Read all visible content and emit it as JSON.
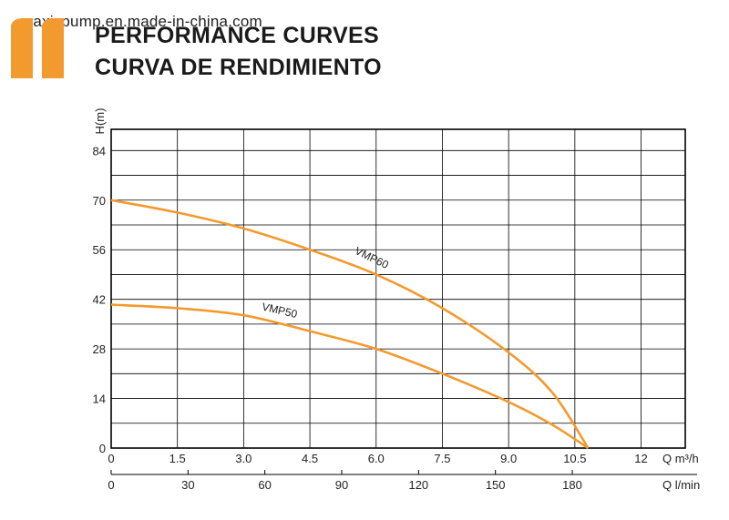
{
  "watermark": "maxispump.en.made-in-china.com",
  "title_line1": "PERFORMANCE CURVES",
  "title_line2": "CURVA DE RENDIMIENTO",
  "colors": {
    "curve": "#F39A2E",
    "grid": "#000000",
    "quote": "#F39A2E"
  },
  "chart_data": {
    "type": "line",
    "ylabel": "H(m)",
    "xlabel": "Q m³/h",
    "x2label": "Q l/min",
    "xlim": [
      0,
      13
    ],
    "ylim": [
      0,
      90
    ],
    "y_ticks": [
      0,
      14,
      28,
      42,
      56,
      70,
      84
    ],
    "x_ticks": [
      0,
      1.5,
      3.0,
      4.5,
      6.0,
      7.5,
      9.0,
      10.5,
      12
    ],
    "x_tick_labels": [
      "0",
      "1.5",
      "3.0",
      "4.5",
      "6.0",
      "7.5",
      "9.0",
      "10.5",
      "12"
    ],
    "x2_ticks": [
      0,
      30,
      60,
      90,
      120,
      150,
      180
    ],
    "grid": true,
    "series": [
      {
        "name": "VMP60",
        "x": [
          0,
          1.5,
          3.0,
          4.5,
          6.0,
          7.5,
          9.0,
          10.0,
          10.8
        ],
        "y": [
          70,
          66.5,
          62,
          56,
          49,
          39.5,
          27,
          15.5,
          0
        ]
      },
      {
        "name": "VMP50",
        "x": [
          0,
          1.5,
          3.0,
          4.5,
          6.0,
          7.5,
          9.0,
          10.0,
          10.8
        ],
        "y": [
          40.5,
          39.5,
          37.5,
          33,
          28,
          21,
          13,
          6.5,
          0
        ]
      }
    ]
  }
}
